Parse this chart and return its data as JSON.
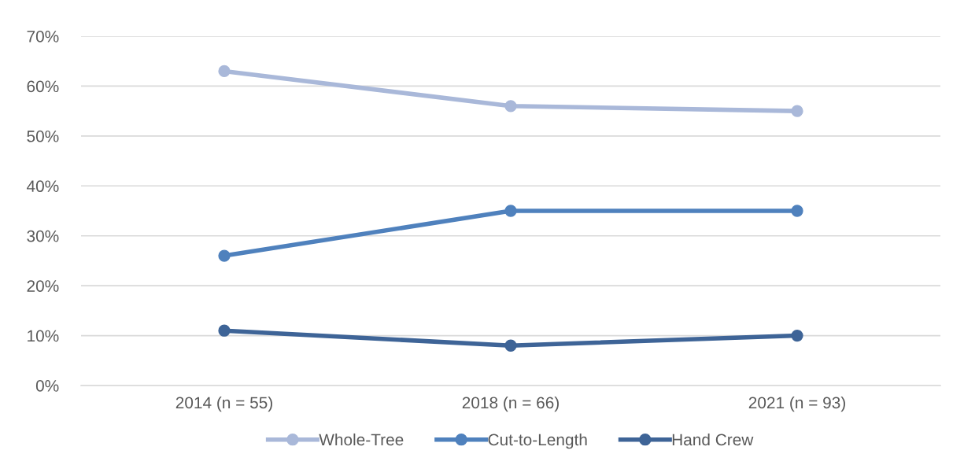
{
  "chart_data": {
    "type": "line",
    "categories": [
      "2014 (n = 55)",
      "2018 (n = 66)",
      "2021 (n = 93)"
    ],
    "series": [
      {
        "name": "Whole-Tree",
        "color": "#a9b8d9",
        "values": [
          63,
          56,
          55
        ]
      },
      {
        "name": "Cut-to-Length",
        "color": "#4f81bd",
        "values": [
          26,
          35,
          35
        ]
      },
      {
        "name": "Hand Crew",
        "color": "#3e6497",
        "values": [
          11,
          8,
          10
        ]
      }
    ],
    "ylim": [
      0,
      70
    ],
    "yticks": [
      {
        "value": 0,
        "label": "0%"
      },
      {
        "value": 10,
        "label": "10%"
      },
      {
        "value": 20,
        "label": "20%"
      },
      {
        "value": 30,
        "label": "30%"
      },
      {
        "value": 40,
        "label": "40%"
      },
      {
        "value": 50,
        "label": "50%"
      },
      {
        "value": 60,
        "label": "60%"
      },
      {
        "value": 70,
        "label": "70%"
      }
    ],
    "grid": "y",
    "legend": "bottom",
    "marker": "circle",
    "line_style": "solid"
  }
}
